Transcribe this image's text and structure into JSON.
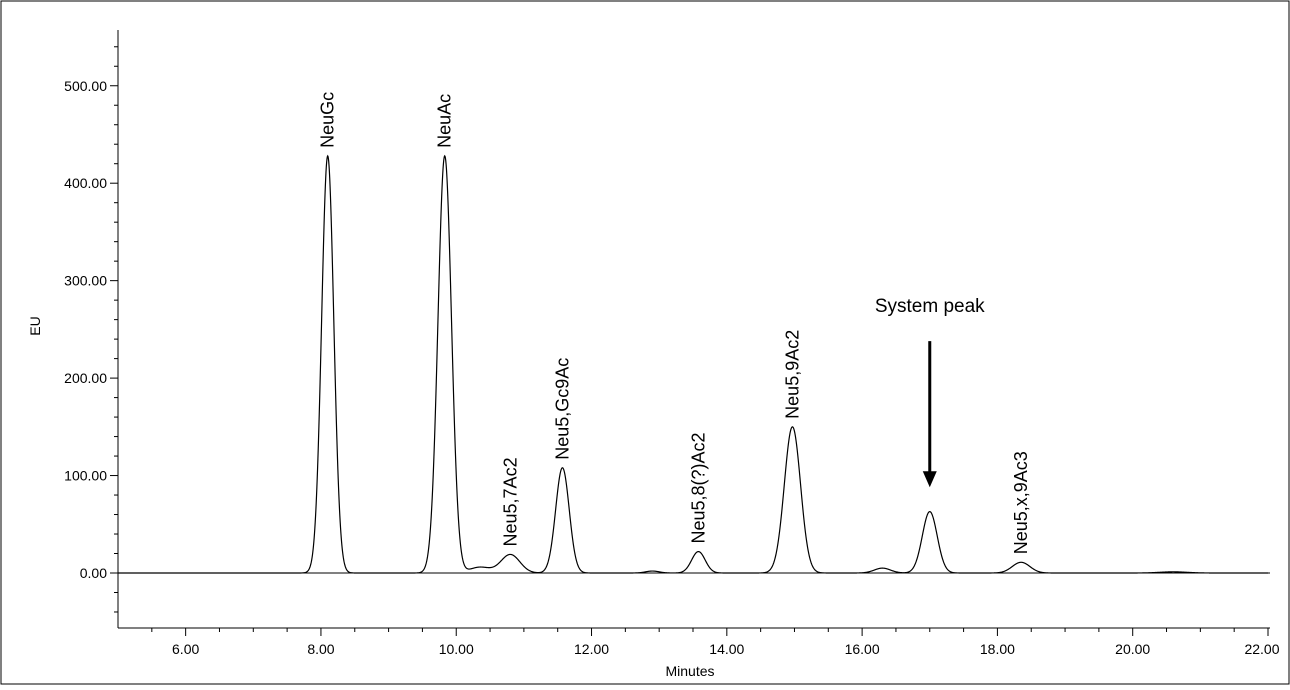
{
  "chart_data": {
    "type": "line",
    "xlabel": "Minutes",
    "ylabel": "EU",
    "xlim": [
      5.0,
      22.0
    ],
    "ylim": [
      -50,
      550
    ],
    "x_ticks": [
      "6.00",
      "8.00",
      "10.00",
      "12.00",
      "14.00",
      "16.00",
      "18.00",
      "20.00",
      "22.00"
    ],
    "y_ticks": [
      "0.00",
      "100.00",
      "200.00",
      "300.00",
      "400.00",
      "500.00"
    ],
    "grid": false,
    "series": [
      {
        "peaks": [
          {
            "label": "NeuGc",
            "x": 8.1,
            "y": 428
          },
          {
            "label": "NeuAc",
            "x": 9.83,
            "y": 428
          },
          {
            "label": "Neu5,7Ac2",
            "x": 10.8,
            "y": 19
          },
          {
            "label": "Neu5,Gc9Ac",
            "x": 11.57,
            "y": 108
          },
          {
            "label": "Neu5,8(?)Ac2",
            "x": 13.58,
            "y": 22
          },
          {
            "label": "Neu5,9Ac2",
            "x": 14.97,
            "y": 150
          },
          {
            "label": "",
            "x": 17.0,
            "y": 63
          },
          {
            "label": "Neu5,x,9Ac3",
            "x": 18.35,
            "y": 11
          }
        ]
      }
    ],
    "annotations": [
      {
        "text": "System peak",
        "arrow_to_x": 17.0,
        "arrow_to_y": 88,
        "arrow_from_y": 238
      }
    ]
  }
}
